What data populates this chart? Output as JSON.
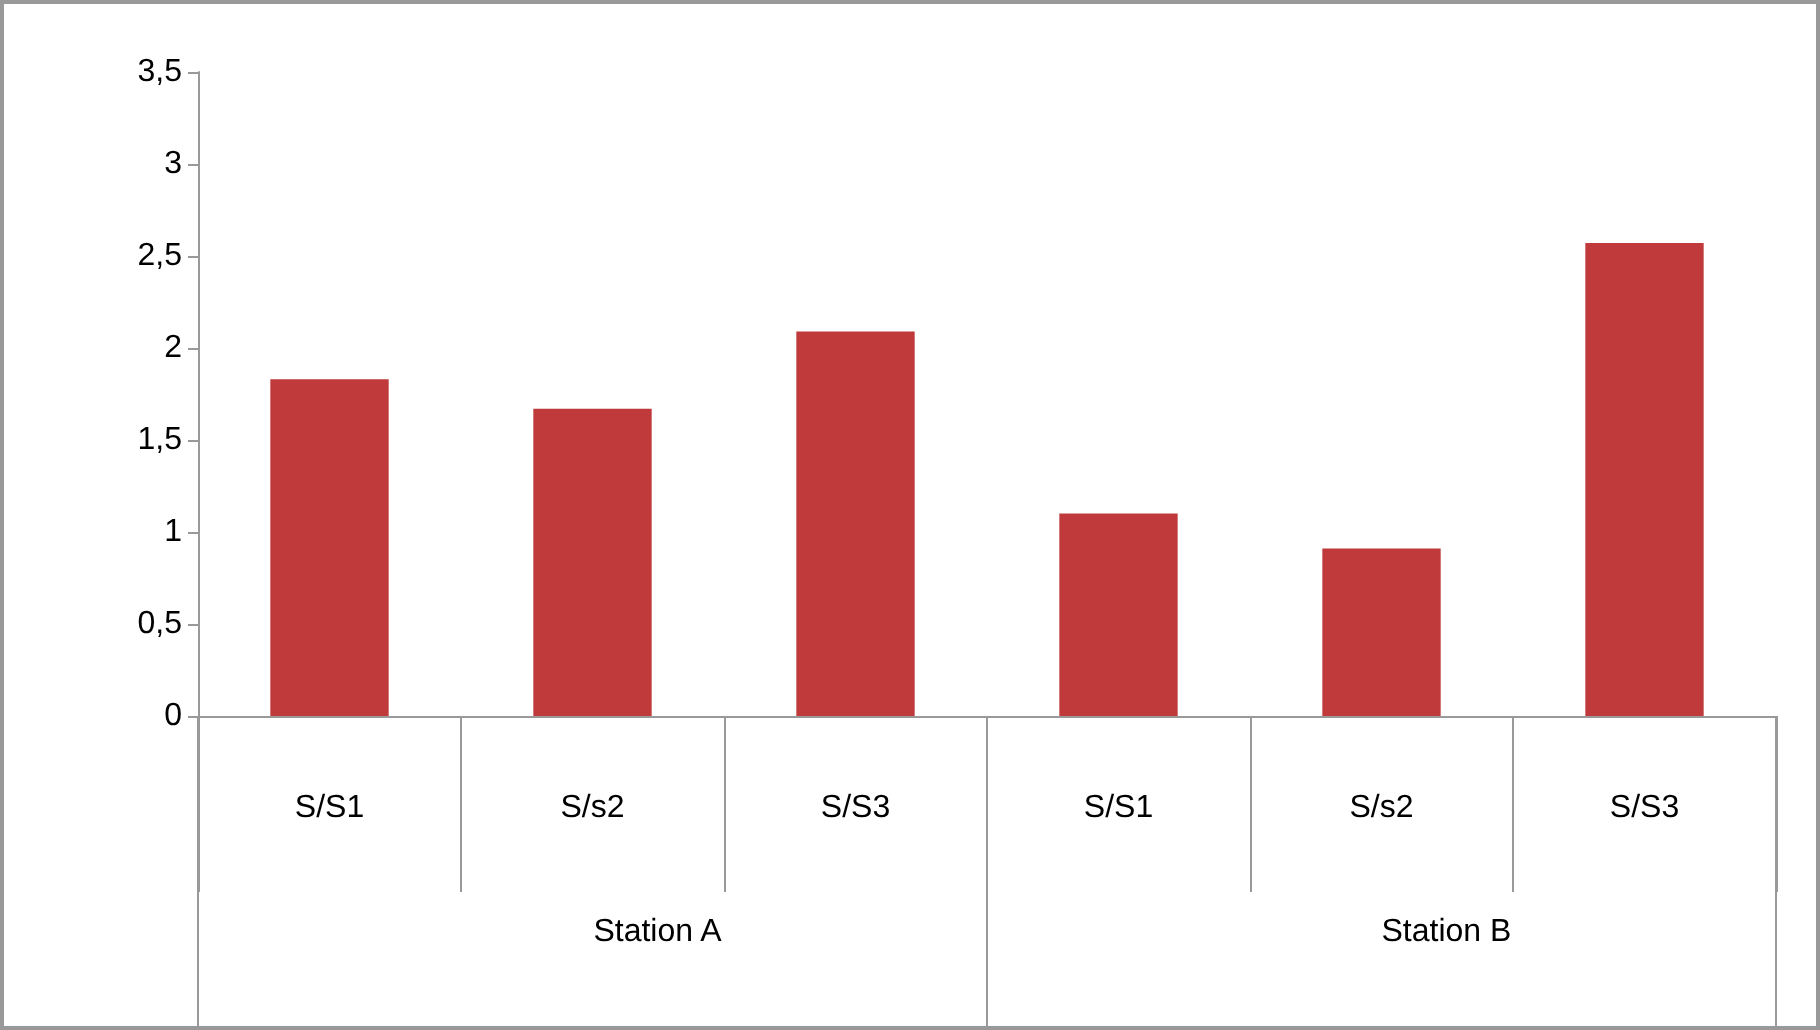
{
  "chart_data": {
    "type": "bar",
    "categories": [
      "S/S1",
      "S/s2",
      "S/S3",
      "S/S1",
      "S/s2",
      "S/S3"
    ],
    "values": [
      1.83,
      1.67,
      2.09,
      1.1,
      0.91,
      2.57
    ],
    "color": "#c0393b",
    "ylim": [
      0,
      3.5
    ],
    "yticks": [
      0,
      {
        "value": 0.5,
        "label": "0,5"
      },
      1,
      {
        "value": 1.5,
        "label": "1,5"
      },
      2,
      {
        "value": 2.5,
        "label": "2,5"
      },
      3,
      {
        "value": 3.5,
        "label": "3,5"
      }
    ],
    "grid": false,
    "annotations": [
      "Station A",
      "Station B"
    ]
  }
}
